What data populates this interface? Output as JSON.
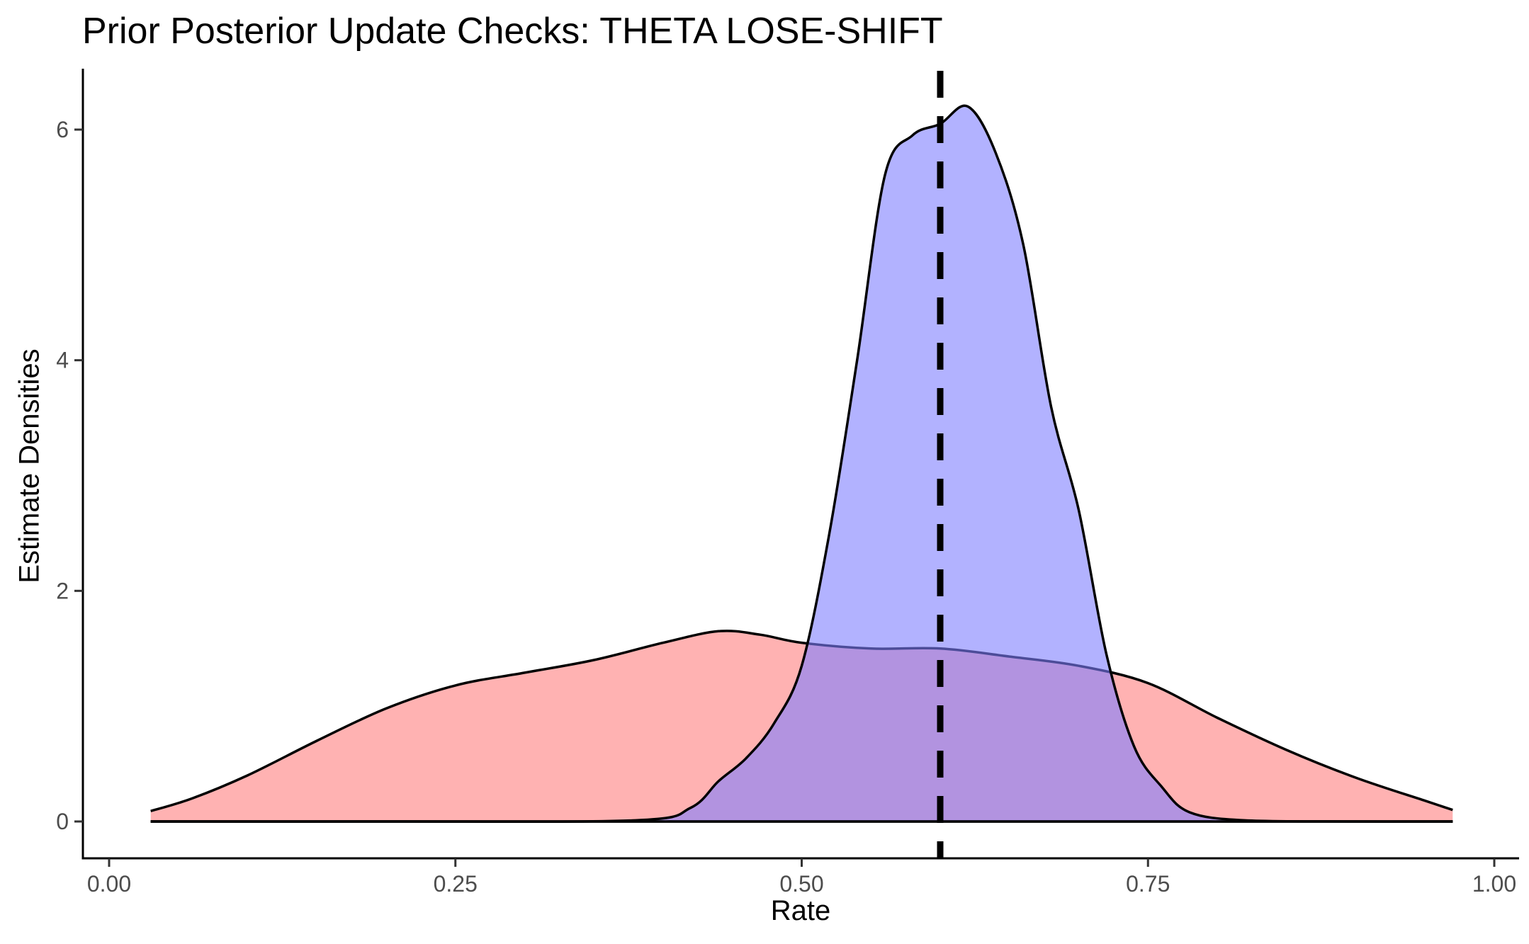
{
  "chart_data": {
    "type": "area",
    "title": "Prior Posterior Update Checks: THETA LOSE-SHIFT",
    "xlabel": "Rate",
    "ylabel": "Estimate Densities",
    "xlim": [
      0.0,
      1.0
    ],
    "ylim": [
      0,
      6.2
    ],
    "x_ticks": [
      0.0,
      0.25,
      0.5,
      0.75,
      1.0
    ],
    "x_tick_labels": [
      "0.00",
      "0.25",
      "0.50",
      "0.75",
      "1.00"
    ],
    "y_ticks": [
      0,
      2,
      4,
      6
    ],
    "y_tick_labels": [
      "0",
      "2",
      "4",
      "6"
    ],
    "grid": false,
    "legend": "none",
    "reference_line": {
      "x": 0.6,
      "style": "dashed",
      "color": "#000000"
    },
    "series": [
      {
        "fill": "#ff7f7f",
        "opacity": 0.6,
        "x": [
          0.03,
          0.06,
          0.1,
          0.15,
          0.2,
          0.25,
          0.3,
          0.35,
          0.4,
          0.44,
          0.47,
          0.5,
          0.55,
          0.6,
          0.65,
          0.7,
          0.75,
          0.8,
          0.85,
          0.9,
          0.95,
          0.97
        ],
        "y": [
          0.09,
          0.2,
          0.4,
          0.7,
          0.98,
          1.18,
          1.29,
          1.4,
          1.55,
          1.65,
          1.62,
          1.55,
          1.5,
          1.5,
          1.43,
          1.35,
          1.2,
          0.9,
          0.62,
          0.38,
          0.18,
          0.1
        ]
      },
      {
        "fill": "#7f7fff",
        "opacity": 0.6,
        "x": [
          0.03,
          0.2,
          0.38,
          0.42,
          0.44,
          0.46,
          0.48,
          0.5,
          0.52,
          0.54,
          0.56,
          0.58,
          0.6,
          0.62,
          0.64,
          0.66,
          0.68,
          0.7,
          0.72,
          0.74,
          0.76,
          0.78,
          0.82,
          0.9,
          0.97
        ],
        "y": [
          0.0,
          0.0,
          0.01,
          0.12,
          0.35,
          0.55,
          0.85,
          1.35,
          2.5,
          4.0,
          5.6,
          5.95,
          6.05,
          6.2,
          5.8,
          5.0,
          3.6,
          2.7,
          1.45,
          0.65,
          0.3,
          0.08,
          0.01,
          0.0,
          0.0
        ]
      }
    ]
  }
}
